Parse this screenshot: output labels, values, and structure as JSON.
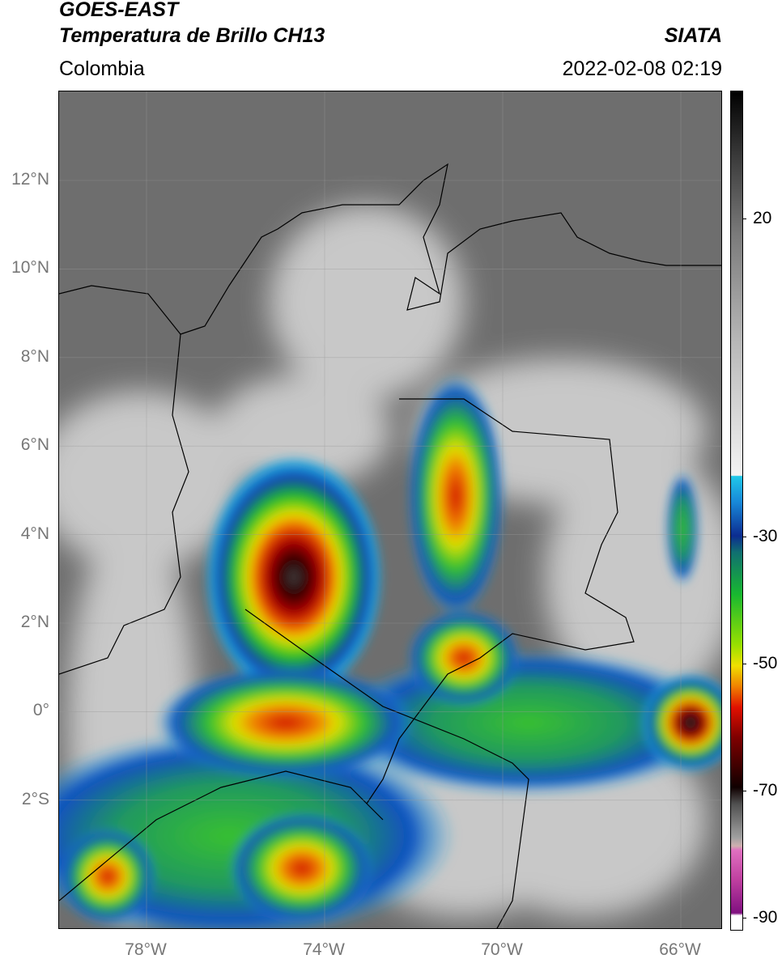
{
  "header": {
    "title": "GOES-EAST",
    "subtitle": "Temperatura de Brillo CH13",
    "region": "Colombia",
    "source": "SIATA",
    "datetime": "2022-02-08 02:19"
  },
  "map": {
    "lat_labels": [
      "12°N",
      "10°N",
      "8°N",
      "6°N",
      "4°N",
      "2°N",
      "0°",
      "2°S"
    ],
    "lon_labels": [
      "78°W",
      "74°W",
      "70°W",
      "66°W"
    ]
  },
  "colorbar": {
    "tick_labels": [
      "20",
      "-30",
      "-50",
      "-70",
      "-90"
    ]
  }
}
